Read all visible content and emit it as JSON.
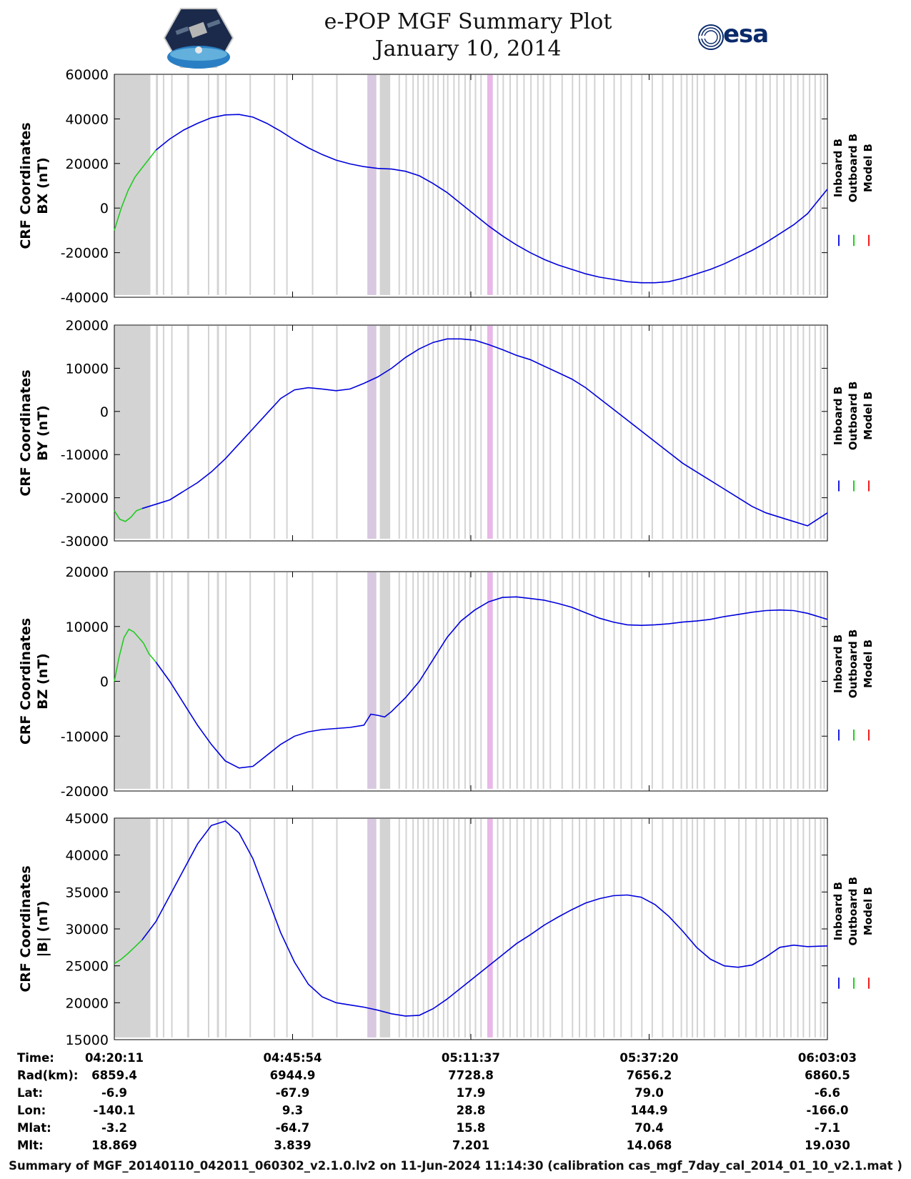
{
  "header": {
    "title_line1": "e-POP MGF Summary Plot",
    "title_line2": "January 10, 2014",
    "left_logo_icon": "cassiope-mission-logo-icon",
    "right_logo_text": "esa",
    "right_logo_icon": "esa-swirl-logo-icon"
  },
  "legend": [
    "Inboard B",
    "Outboard B",
    "Model B"
  ],
  "legend_colors": [
    "#0000dd",
    "#00cc00",
    "#ee0000"
  ],
  "colors": {
    "inboard": "#0000dd",
    "outboard": "#22cc22",
    "model": "#ee0000",
    "shade_gray": "#d3d3d3",
    "shade_purple": "#d8c8e0",
    "shade_pink": "#e8b8e8"
  },
  "time_rows": {
    "labels": [
      "Time:",
      "Rad(km):",
      "Lat:",
      "Lon:",
      "Mlat:",
      "Mlt:"
    ],
    "columns": [
      [
        "04:20:11",
        "6859.4",
        "-6.9",
        "-140.1",
        "-3.2",
        "18.869"
      ],
      [
        "04:45:54",
        "6944.9",
        "-67.9",
        "9.3",
        "-64.7",
        "3.839"
      ],
      [
        "05:11:37",
        "7728.8",
        "17.9",
        "28.8",
        "15.8",
        "7.201"
      ],
      [
        "05:37:20",
        "7656.2",
        "79.0",
        "144.9",
        "70.4",
        "14.068"
      ],
      [
        "06:03:03",
        "6860.5",
        "-6.6",
        "-166.0",
        "-7.1",
        "19.030"
      ]
    ]
  },
  "footer": "Summary of MGF_20140110_042011_060302_v2.1.0.lv2 on 11-Jun-2024 11:14:30 (calibration cas_mgf_7day_cal_2014_01_10_v2.1.mat )",
  "chart_data": [
    {
      "type": "line",
      "ylabel_line1": "CRF Coordinates",
      "ylabel_line2": "BX (nT)",
      "ylim": [
        -40000,
        60000
      ],
      "yticks": [
        -40000,
        -20000,
        0,
        20000,
        40000,
        60000
      ],
      "x_unit": "minutes since 04:20:11",
      "xlim": [
        0,
        102.87
      ],
      "series": [
        {
          "name": "Outboard B",
          "color": "#22cc22",
          "x": [
            0,
            1,
            2,
            3,
            4,
            5,
            6
          ],
          "y": [
            -10000,
            0,
            8000,
            14000,
            18000,
            22000,
            26000
          ]
        },
        {
          "name": "Inboard B",
          "color": "#0000dd",
          "x": [
            6,
            8,
            10,
            12,
            14,
            16,
            18,
            20,
            22,
            24,
            26,
            28,
            30,
            32,
            34,
            36,
            38,
            40,
            42,
            44,
            46,
            48,
            50,
            52,
            54,
            56,
            58,
            60,
            62,
            64,
            66,
            68,
            70,
            72,
            74,
            76,
            78,
            80,
            82,
            84,
            86,
            88,
            90,
            92,
            94,
            96,
            98,
            100,
            102.87
          ],
          "y": [
            26000,
            31000,
            35000,
            38000,
            40500,
            41800,
            42000,
            40800,
            38000,
            34500,
            30500,
            27000,
            24000,
            21500,
            19800,
            18600,
            17800,
            17500,
            16500,
            14500,
            11000,
            7000,
            2000,
            -3000,
            -8000,
            -12500,
            -16500,
            -20000,
            -23000,
            -25500,
            -27500,
            -29500,
            -31000,
            -32000,
            -33000,
            -33500,
            -33500,
            -33000,
            -31500,
            -29500,
            -27500,
            -25000,
            -22000,
            -19000,
            -15500,
            -11500,
            -7500,
            -2500,
            8500
          ]
        }
      ]
    },
    {
      "type": "line",
      "ylabel_line1": "CRF Coordinates",
      "ylabel_line2": "BY (nT)",
      "ylim": [
        -30000,
        20000
      ],
      "yticks": [
        -30000,
        -20000,
        -10000,
        0,
        10000,
        20000
      ],
      "x_unit": "minutes since 04:20:11",
      "xlim": [
        0,
        102.87
      ],
      "series": [
        {
          "name": "Outboard B",
          "color": "#22cc22",
          "x": [
            0,
            0.8,
            1.6,
            2.4,
            3.2,
            4.0
          ],
          "y": [
            -23000,
            -25000,
            -25500,
            -24500,
            -23000,
            -22500
          ]
        },
        {
          "name": "Inboard B",
          "color": "#0000dd",
          "x": [
            4.0,
            6,
            8,
            10,
            12,
            14,
            16,
            18,
            20,
            22,
            24,
            26,
            28,
            30,
            32,
            34,
            36,
            38,
            40,
            42,
            44,
            46,
            48,
            50,
            52,
            54,
            56,
            58,
            60,
            62,
            64,
            66,
            68,
            70,
            72,
            74,
            76,
            78,
            80,
            82,
            84,
            86,
            88,
            90,
            92,
            94,
            96,
            98,
            100,
            102.87
          ],
          "y": [
            -22500,
            -21500,
            -20500,
            -18500,
            -16500,
            -14000,
            -11000,
            -7500,
            -4000,
            -500,
            3000,
            5000,
            5500,
            5200,
            4800,
            5200,
            6500,
            8000,
            10000,
            12500,
            14500,
            16000,
            16800,
            16800,
            16500,
            15500,
            14300,
            13000,
            12000,
            10500,
            9000,
            7500,
            5500,
            3000,
            500,
            -2000,
            -4500,
            -7000,
            -9500,
            -12000,
            -14000,
            -16000,
            -18000,
            -20000,
            -22000,
            -23500,
            -24500,
            -25500,
            -26500,
            -23500
          ]
        }
      ]
    },
    {
      "type": "line",
      "ylabel_line1": "CRF Coordinates",
      "ylabel_line2": "BZ (nT)",
      "ylim": [
        -20000,
        20000
      ],
      "yticks": [
        -20000,
        -10000,
        0,
        10000,
        20000
      ],
      "x_unit": "minutes since 04:20:11",
      "xlim": [
        0,
        102.87
      ],
      "series": [
        {
          "name": "Outboard B",
          "color": "#22cc22",
          "x": [
            0,
            0.7,
            1.4,
            2.1,
            2.8,
            3.5,
            4.2,
            5.0,
            6.0
          ],
          "y": [
            0,
            4500,
            8000,
            9500,
            9000,
            8000,
            7000,
            5000,
            3500
          ]
        },
        {
          "name": "Inboard B",
          "color": "#0000dd",
          "x": [
            6.0,
            8,
            10,
            12,
            14,
            16,
            18,
            20,
            22,
            24,
            26,
            28,
            30,
            32,
            34,
            36,
            37,
            38,
            39,
            40,
            42,
            44,
            46,
            48,
            50,
            52,
            54,
            56,
            58,
            60,
            62,
            64,
            66,
            68,
            70,
            72,
            74,
            76,
            78,
            80,
            82,
            84,
            86,
            88,
            90,
            92,
            94,
            96,
            98,
            100,
            102.87
          ],
          "y": [
            3500,
            0,
            -4000,
            -8000,
            -11500,
            -14500,
            -15800,
            -15500,
            -13500,
            -11500,
            -10000,
            -9200,
            -8800,
            -8600,
            -8400,
            -8000,
            -6000,
            -6200,
            -6500,
            -5500,
            -3000,
            0,
            4000,
            8000,
            11000,
            13000,
            14500,
            15300,
            15400,
            15100,
            14800,
            14200,
            13500,
            12500,
            11500,
            10800,
            10300,
            10200,
            10300,
            10500,
            10800,
            11000,
            11300,
            11800,
            12200,
            12600,
            12900,
            13000,
            12900,
            12400,
            11300
          ]
        }
      ]
    },
    {
      "type": "line",
      "ylabel_line1": "CRF Coordinates",
      "ylabel_line2": "|B| (nT)",
      "ylim": [
        15000,
        45000
      ],
      "yticks": [
        15000,
        20000,
        25000,
        30000,
        35000,
        40000,
        45000
      ],
      "x_unit": "minutes since 04:20:11",
      "xlim": [
        0,
        102.87
      ],
      "series": [
        {
          "name": "Outboard B",
          "color": "#22cc22",
          "x": [
            0,
            1,
            2,
            3,
            4
          ],
          "y": [
            25300,
            25900,
            26700,
            27600,
            28500
          ]
        },
        {
          "name": "Inboard B",
          "color": "#0000dd",
          "x": [
            4,
            6,
            8,
            10,
            12,
            14,
            16,
            18,
            20,
            22,
            24,
            26,
            28,
            30,
            32,
            34,
            36,
            38,
            40,
            42,
            44,
            46,
            48,
            50,
            52,
            54,
            56,
            58,
            60,
            62,
            64,
            66,
            68,
            70,
            72,
            74,
            76,
            78,
            80,
            82,
            84,
            86,
            88,
            90,
            92,
            94,
            96,
            98,
            100,
            102.87
          ],
          "y": [
            28500,
            31000,
            34500,
            38000,
            41500,
            44000,
            44600,
            43000,
            39500,
            34500,
            29500,
            25500,
            22500,
            20800,
            20000,
            19700,
            19400,
            19000,
            18500,
            18200,
            18300,
            19200,
            20500,
            22000,
            23500,
            25000,
            26500,
            28000,
            29200,
            30500,
            31600,
            32600,
            33500,
            34100,
            34500,
            34600,
            34300,
            33300,
            31700,
            29700,
            27500,
            25900,
            25000,
            24800,
            25100,
            26200,
            27500,
            27800,
            27600,
            27700
          ]
        }
      ]
    }
  ]
}
